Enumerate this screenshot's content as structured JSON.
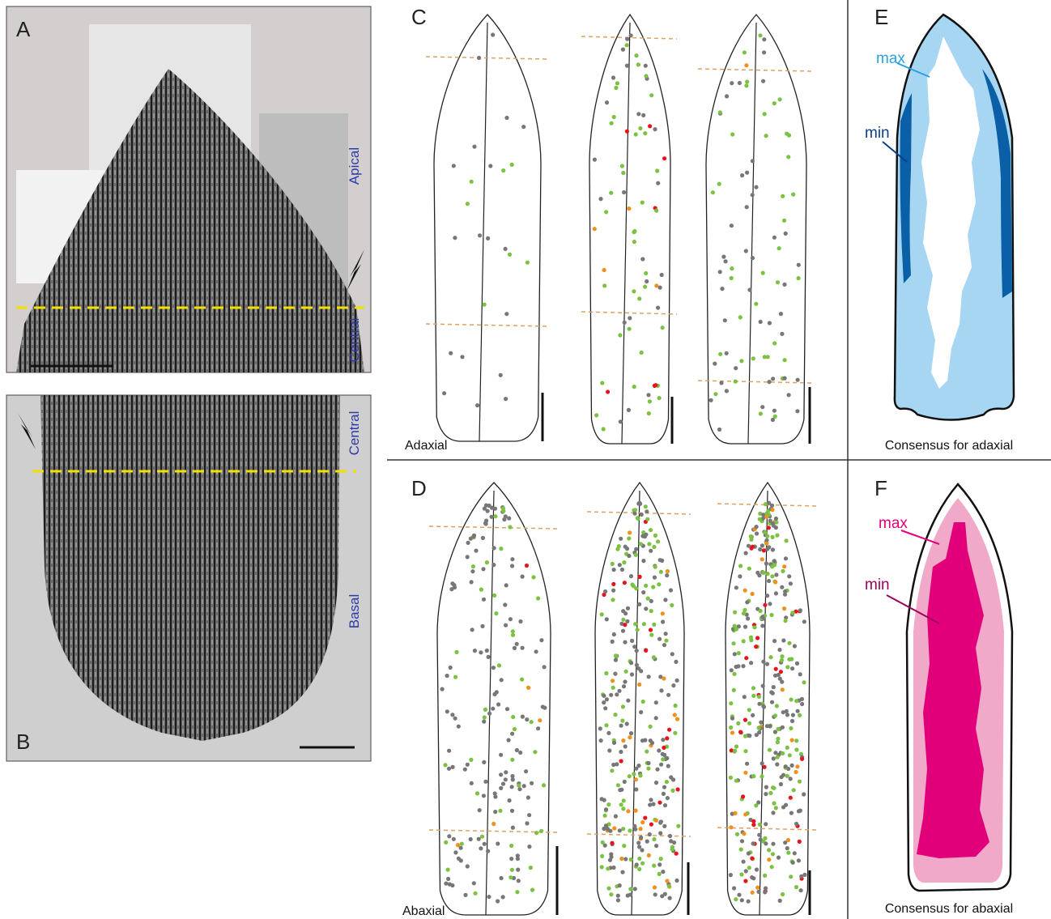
{
  "panel_a": {
    "label": "A",
    "apical": "Apical",
    "central": "Central"
  },
  "panel_b": {
    "label": "B",
    "central": "Central",
    "basal": "Basal"
  },
  "panel_c": {
    "label": "C",
    "side": "Adaxial"
  },
  "panel_d": {
    "label": "D",
    "side": "Abaxial"
  },
  "panel_e": {
    "label": "E",
    "max": "max",
    "min": "min",
    "caption": "Consensus for adaxial"
  },
  "panel_f": {
    "label": "F",
    "max": "max",
    "min": "min",
    "caption": "Consensus for abaxial"
  }
}
